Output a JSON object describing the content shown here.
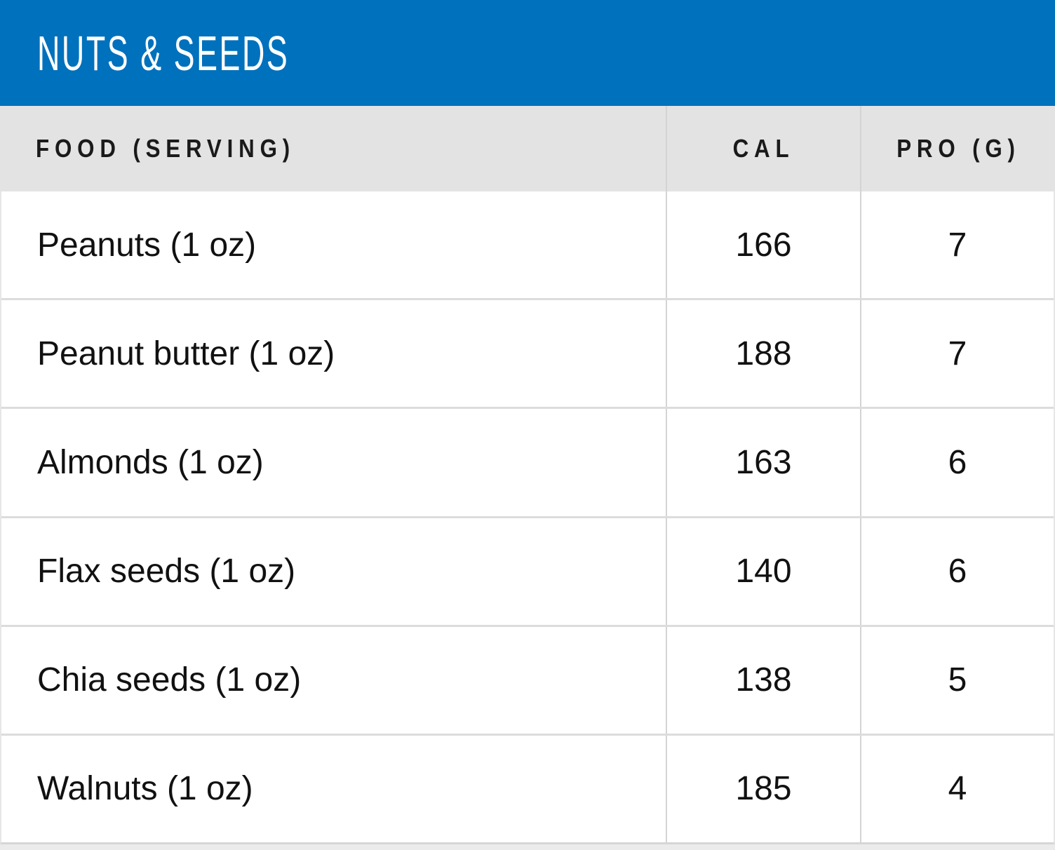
{
  "header": {
    "title": "NUTS & SEEDS"
  },
  "table": {
    "columns": [
      {
        "id": "food",
        "label": "FOOD (SERVING)"
      },
      {
        "id": "cal",
        "label": "CAL"
      },
      {
        "id": "pro",
        "label": "PRO (G)"
      }
    ],
    "rows": [
      {
        "food": "Peanuts (1 oz)",
        "cal": "166",
        "pro": "7"
      },
      {
        "food": "Peanut butter (1 oz)",
        "cal": "188",
        "pro": "7"
      },
      {
        "food": "Almonds (1 oz)",
        "cal": "163",
        "pro": "6"
      },
      {
        "food": "Flax seeds (1 oz)",
        "cal": "140",
        "pro": "6"
      },
      {
        "food": "Chia seeds (1 oz)",
        "cal": "138",
        "pro": "5"
      },
      {
        "food": "Walnuts (1 oz)",
        "cal": "185",
        "pro": "4"
      }
    ]
  },
  "chart_data": {
    "type": "table",
    "title": "NUTS & SEEDS",
    "columns": [
      "FOOD (SERVING)",
      "CAL",
      "PRO (G)"
    ],
    "rows": [
      [
        "Peanuts (1 oz)",
        166,
        7
      ],
      [
        "Peanut butter (1 oz)",
        188,
        7
      ],
      [
        "Almonds (1 oz)",
        163,
        6
      ],
      [
        "Flax seeds (1 oz)",
        140,
        6
      ],
      [
        "Chia seeds (1 oz)",
        138,
        5
      ],
      [
        "Walnuts (1 oz)",
        185,
        4
      ]
    ]
  },
  "colors": {
    "banner_bg": "#0071bc",
    "banner_text": "#ffffff",
    "column_header_bg": "#e3e3e3",
    "column_header_text": "#1a1a1a",
    "row_bg": "#ffffff",
    "row_text": "#111111",
    "column_divider": "#d4d4d4",
    "row_separator": "#dcdcdc"
  }
}
